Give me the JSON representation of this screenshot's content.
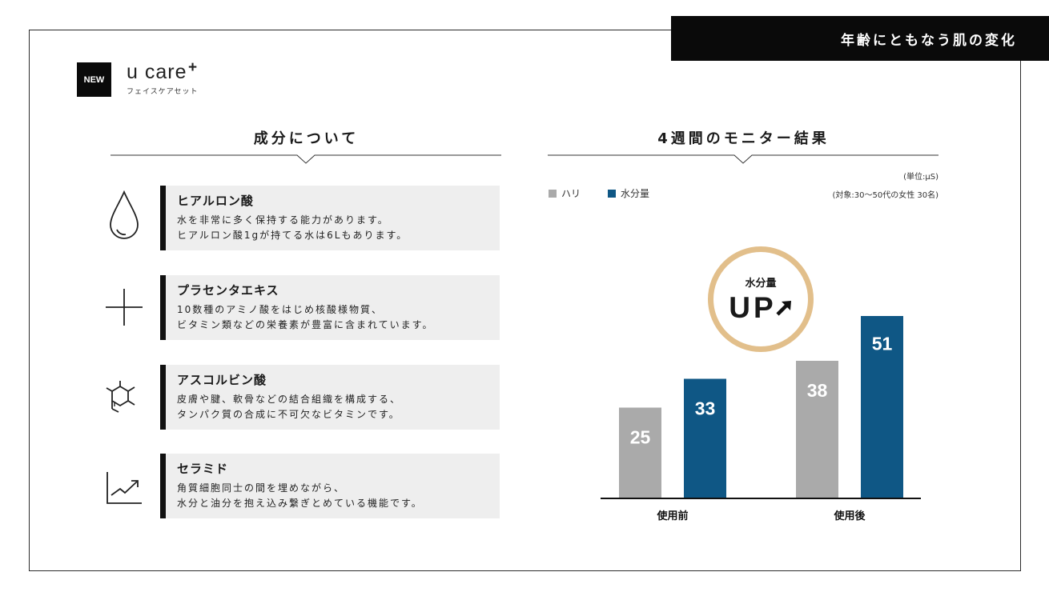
{
  "banner": {
    "text": "年齢にともなう肌の変化"
  },
  "brand": {
    "badge": "NEW",
    "name": "u care",
    "plus": "+",
    "subtitle": "フェイスケアセット"
  },
  "ingredients": {
    "title": "成分について",
    "items": [
      {
        "icon": "droplet-icon",
        "name": "ヒアルロン酸",
        "lines": [
          "水を非常に多く保持する能力があります。",
          "ヒアルロン酸1gが持てる水は6Lもあります。"
        ]
      },
      {
        "icon": "cross-icon",
        "name": "プラセンタエキス",
        "lines": [
          "10数種のアミノ酸をはじめ核酸様物質、",
          "ビタミン類などの栄養素が豊富に含まれています。"
        ]
      },
      {
        "icon": "molecule-icon",
        "name": "アスコルビン酸",
        "lines": [
          "皮膚や腱、軟骨などの結合組織を構成する、",
          "タンパク質の合成に不可欠なビタミンです。"
        ]
      },
      {
        "icon": "trend-chart-icon",
        "name": "セラミド",
        "lines": [
          "角質細胞同士の間を埋めながら、",
          "水分と油分を抱え込み繋ぎとめている機能です。"
        ]
      }
    ]
  },
  "results": {
    "title": "4週間のモニター結果",
    "unit": "(単位:μS)",
    "subjects": "(対象:30〜50代の女性 30名)",
    "callout_label": "水分量",
    "callout_text": "UP",
    "callout_icon": "arrow-up-right-icon"
  },
  "colors": {
    "gray": "#aaaaaa",
    "blue": "#0f5785",
    "gold": "#e2bf8b"
  },
  "chart_data": {
    "type": "bar",
    "categories": [
      "使用前",
      "使用後"
    ],
    "series": [
      {
        "name": "ハリ",
        "values": [
          25,
          38
        ],
        "color": "#aaaaaa"
      },
      {
        "name": "水分量",
        "values": [
          33,
          51
        ],
        "color": "#0f5785"
      }
    ],
    "ylim": [
      0,
      60
    ],
    "grid": false,
    "legend_position": "top-left",
    "data_labels": true
  }
}
